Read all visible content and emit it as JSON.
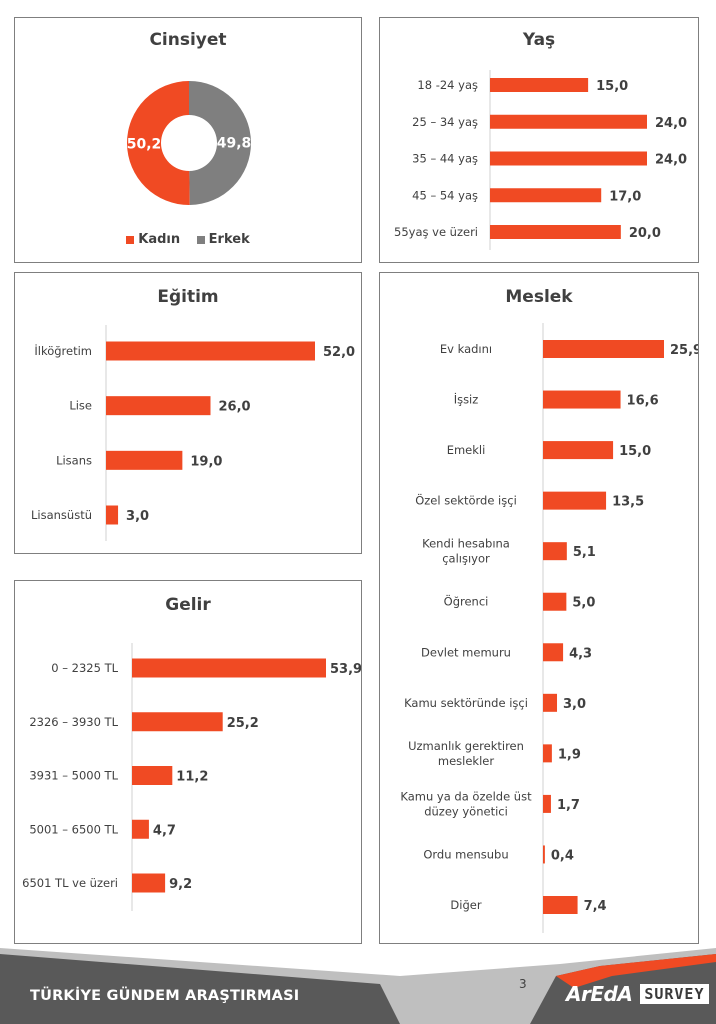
{
  "chart_data": [
    {
      "id": "cinsiyet",
      "type": "pie",
      "title": "Cinsiyet",
      "categories": [
        "Kadın",
        "Erkek"
      ],
      "values": [
        50.2,
        49.8
      ],
      "value_labels": [
        "50,2",
        "49,8"
      ],
      "colors": [
        "#f04a23",
        "#7f7f7f"
      ],
      "legend": "bottom"
    },
    {
      "id": "yas",
      "type": "bar",
      "orientation": "horizontal",
      "title": "Yaş",
      "categories": [
        "18 -24 yaş",
        "25 – 34 yaş",
        "35 – 44 yaş",
        "45 – 54 yaş",
        "55yaş ve üzeri"
      ],
      "values": [
        15.0,
        24.0,
        24.0,
        17.0,
        20.0
      ],
      "value_labels": [
        "15,0",
        "24,0",
        "24,0",
        "17,0",
        "20,0"
      ]
    },
    {
      "id": "egitim",
      "type": "bar",
      "orientation": "horizontal",
      "title": "Eğitim",
      "categories": [
        "İlköğretim",
        "Lise",
        "Lisans",
        "Lisansüstü"
      ],
      "values": [
        52.0,
        26.0,
        19.0,
        3.0
      ],
      "value_labels": [
        "52,0",
        "26,0",
        "19,0",
        "3,0"
      ]
    },
    {
      "id": "meslek",
      "type": "bar",
      "orientation": "horizontal",
      "title": "Meslek",
      "categories": [
        "Ev kadını",
        "İşsiz",
        "Emekli",
        "Özel sektörde işçi",
        "Kendi hesabına|çalışıyor",
        "Öğrenci",
        "Devlet memuru",
        "Kamu sektöründe işçi",
        "Uzmanlık gerektiren|meslekler",
        "Kamu ya da özelde üst|düzey yönetici",
        "Ordu mensubu",
        "Diğer"
      ],
      "values": [
        25.9,
        16.6,
        15.0,
        13.5,
        5.1,
        5.0,
        4.3,
        3.0,
        1.9,
        1.7,
        0.4,
        7.4
      ],
      "value_labels": [
        "25,9",
        "16,6",
        "15,0",
        "13,5",
        "5,1",
        "5,0",
        "4,3",
        "3,0",
        "1,9",
        "1,7",
        "0,4",
        "7,4"
      ]
    },
    {
      "id": "gelir",
      "type": "bar",
      "orientation": "horizontal",
      "title": "Gelir",
      "categories": [
        "0 – 2325 TL",
        "2326 – 3930 TL",
        "3931 – 5000 TL",
        "5001 – 6500 TL",
        "6501 TL ve üzeri"
      ],
      "values": [
        53.9,
        25.2,
        11.2,
        4.7,
        9.2
      ],
      "value_labels": [
        "53,9",
        "25,2",
        "11,2",
        "4,7",
        "9,2"
      ]
    }
  ],
  "footer": {
    "title": "TÜRKİYE GÜNDEM ARAŞTIRMASI",
    "page_number": "3",
    "logo_mark": "ArEdA",
    "logo_survey": "SURVEY"
  },
  "colors": {
    "accent": "#f04a23",
    "grey": "#7f7f7f",
    "footer_dark": "#595959",
    "footer_light": "#bfbfbf"
  }
}
